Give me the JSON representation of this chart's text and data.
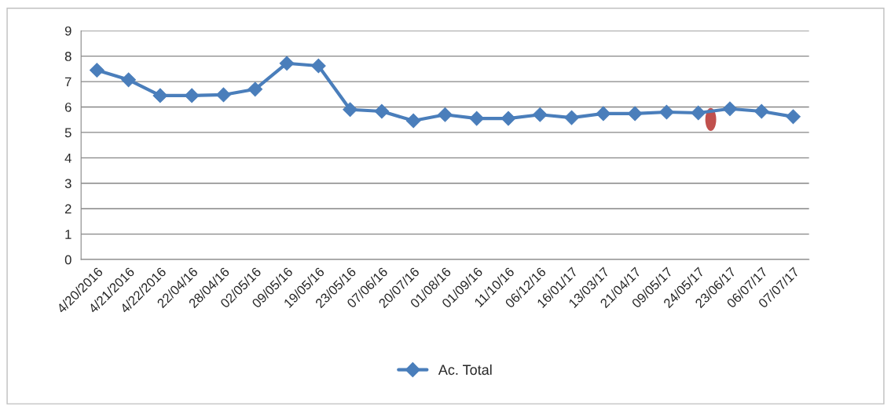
{
  "chart_data": {
    "type": "line",
    "categories": [
      "4/20/2016",
      "4/21/2016",
      "4/22/2016",
      "22/04/16",
      "28/04/16",
      "02/05/16",
      "09/05/16",
      "19/05/16",
      "23/05/16",
      "07/06/16",
      "20/07/16",
      "01/08/16",
      "01/09/16",
      "11/10/16",
      "06/12/16",
      "16/01/17",
      "13/03/17",
      "21/04/17",
      "09/05/17",
      "24/05/17",
      "23/06/17",
      "06/07/17",
      "07/07/17"
    ],
    "series": [
      {
        "name": "Ac. Total",
        "color": "#4a7ebb",
        "values": [
          7.45,
          7.07,
          6.45,
          6.45,
          6.48,
          6.7,
          7.72,
          7.62,
          5.9,
          5.83,
          5.46,
          5.7,
          5.55,
          5.55,
          5.7,
          5.58,
          5.74,
          5.74,
          5.8,
          5.77,
          5.93,
          5.83,
          5.62
        ]
      }
    ],
    "ylim": [
      0,
      9
    ],
    "yticks": [
      0,
      1,
      2,
      3,
      4,
      5,
      6,
      7,
      8,
      9
    ],
    "grid": "y",
    "legend": "bottom",
    "marker": "diamond",
    "line_style": "solid"
  }
}
